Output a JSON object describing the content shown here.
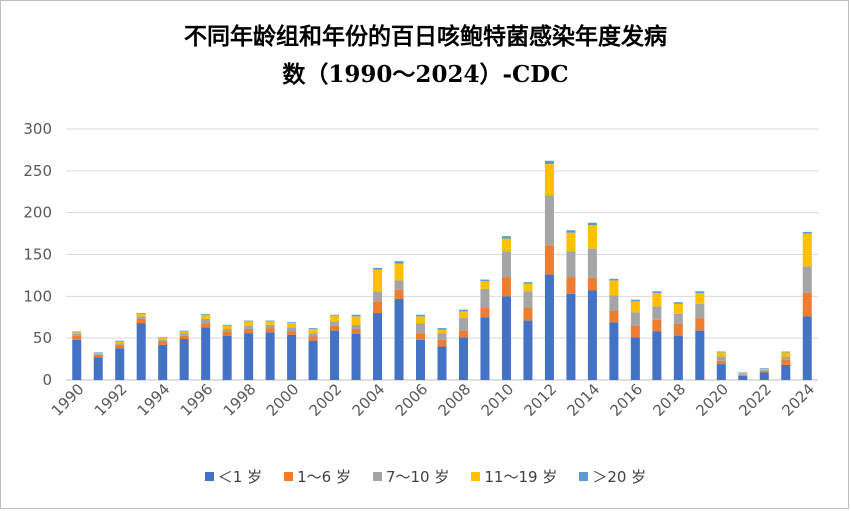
{
  "chart_data": {
    "type": "bar",
    "stacked": true,
    "title_line1": "不同年龄组和年份的百日咳鲍特菌感染年度发病",
    "title_line2": "数（1990～2024）-CDC",
    "xlabel": "",
    "ylabel": "",
    "ylim": [
      0,
      300
    ],
    "yticks": [
      0,
      50,
      100,
      150,
      200,
      250,
      300
    ],
    "grid": true,
    "legend_position": "bottom",
    "categories": [
      "1990",
      "1991",
      "1992",
      "1993",
      "1994",
      "1995",
      "1996",
      "1997",
      "1998",
      "1999",
      "2000",
      "2001",
      "2002",
      "2003",
      "2004",
      "2005",
      "2006",
      "2007",
      "2008",
      "2009",
      "2010",
      "2011",
      "2012",
      "2013",
      "2014",
      "2015",
      "2016",
      "2017",
      "2018",
      "2019",
      "2020",
      "2021",
      "2022",
      "2023",
      "2024"
    ],
    "xtick_labels": [
      "1990",
      "1992",
      "1994",
      "1996",
      "1998",
      "2000",
      "2002",
      "2004",
      "2006",
      "2008",
      "2010",
      "2012",
      "2014",
      "2016",
      "2018",
      "2020",
      "2022",
      "2024"
    ],
    "series": [
      {
        "name": "＜1 岁",
        "color": "#4472c4",
        "values": [
          48,
          27,
          38,
          68,
          42,
          49,
          63,
          53,
          56,
          57,
          54,
          47,
          59,
          55,
          80,
          97,
          48,
          40,
          51,
          75,
          100,
          71,
          126,
          103,
          107,
          69,
          51,
          58,
          53,
          59,
          19,
          5,
          9,
          18,
          76
        ]
      },
      {
        "name": "1～6 岁",
        "color": "#ed7d31",
        "values": [
          5,
          3,
          4,
          5,
          4,
          4,
          5,
          5,
          5,
          5,
          4,
          5,
          6,
          6,
          14,
          11,
          8,
          8,
          8,
          11,
          23,
          15,
          35,
          20,
          15,
          14,
          14,
          14,
          14,
          15,
          4,
          1,
          2,
          6,
          28
        ]
      },
      {
        "name": "7～10 岁",
        "color": "#a5a5a5",
        "values": [
          2,
          1,
          2,
          3,
          2,
          3,
          5,
          3,
          4,
          4,
          5,
          4,
          5,
          5,
          12,
          11,
          12,
          8,
          15,
          23,
          31,
          20,
          60,
          31,
          35,
          18,
          16,
          16,
          12,
          17,
          5,
          1,
          1,
          4,
          32
        ]
      },
      {
        "name": "11～19 岁",
        "color": "#ffc000",
        "values": [
          2,
          1,
          2,
          3,
          2,
          2,
          5,
          4,
          5,
          4,
          5,
          5,
          7,
          10,
          26,
          20,
          8,
          4,
          8,
          9,
          15,
          9,
          37,
          22,
          28,
          18,
          13,
          16,
          12,
          13,
          5,
          1,
          1,
          5,
          39
        ]
      },
      {
        "name": "＞20 岁",
        "color": "#5b9bd5",
        "values": [
          1,
          1,
          1,
          1,
          1,
          1,
          1,
          1,
          1,
          1,
          1,
          1,
          1,
          2,
          2,
          3,
          2,
          2,
          2,
          2,
          3,
          2,
          4,
          3,
          3,
          2,
          2,
          2,
          2,
          2,
          1,
          1,
          1,
          1,
          2
        ]
      }
    ]
  }
}
